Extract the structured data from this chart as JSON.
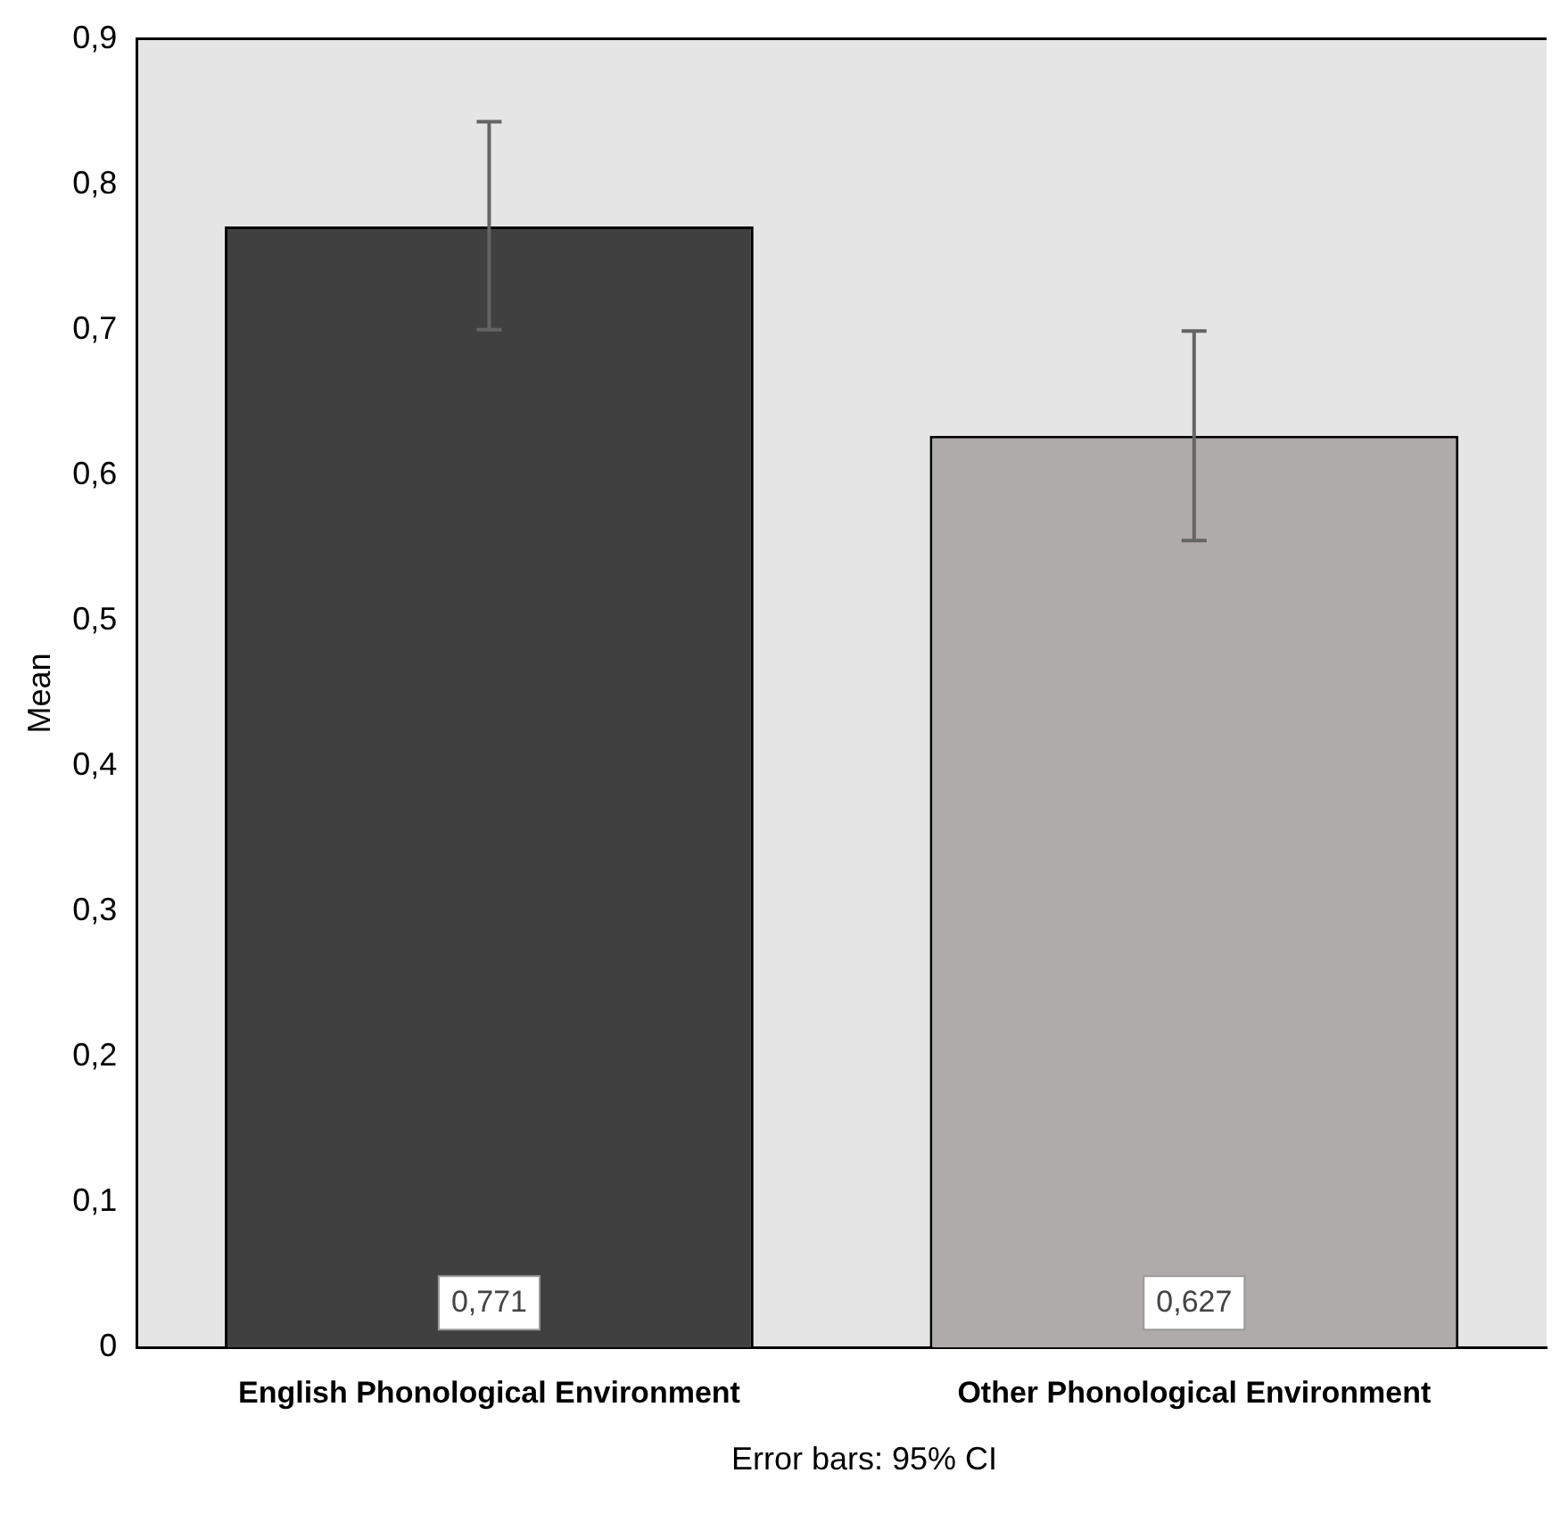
{
  "chart_data": {
    "type": "bar",
    "ylabel": "Mean",
    "categories": [
      "English Phonological Environment",
      "Other Phonological Environment"
    ],
    "values": [
      0.771,
      0.627
    ],
    "colors": [
      "#404040",
      "#afabaa"
    ],
    "errors": [
      [
        0.7,
        0.843
      ],
      [
        0.555,
        0.699
      ]
    ],
    "value_labels": [
      "0,771",
      "0,627"
    ],
    "ylim": [
      0,
      0.9
    ],
    "yticks": [
      0,
      {
        "value": 0.1,
        "label": "0,1"
      },
      {
        "value": 0.2,
        "label": "0,2"
      },
      {
        "value": 0.3,
        "label": "0,3"
      },
      {
        "value": 0.4,
        "label": "0,4"
      },
      {
        "value": 0.5,
        "label": "0,5"
      },
      {
        "value": 0.6,
        "label": "0,6"
      },
      {
        "value": 0.7,
        "label": "0,7"
      },
      {
        "value": 0.8,
        "label": "0,8"
      },
      {
        "value": 0.9,
        "label": "0,9"
      }
    ],
    "grid": false,
    "legend": false,
    "annotations": [
      "Error bars: 95% CI"
    ]
  }
}
